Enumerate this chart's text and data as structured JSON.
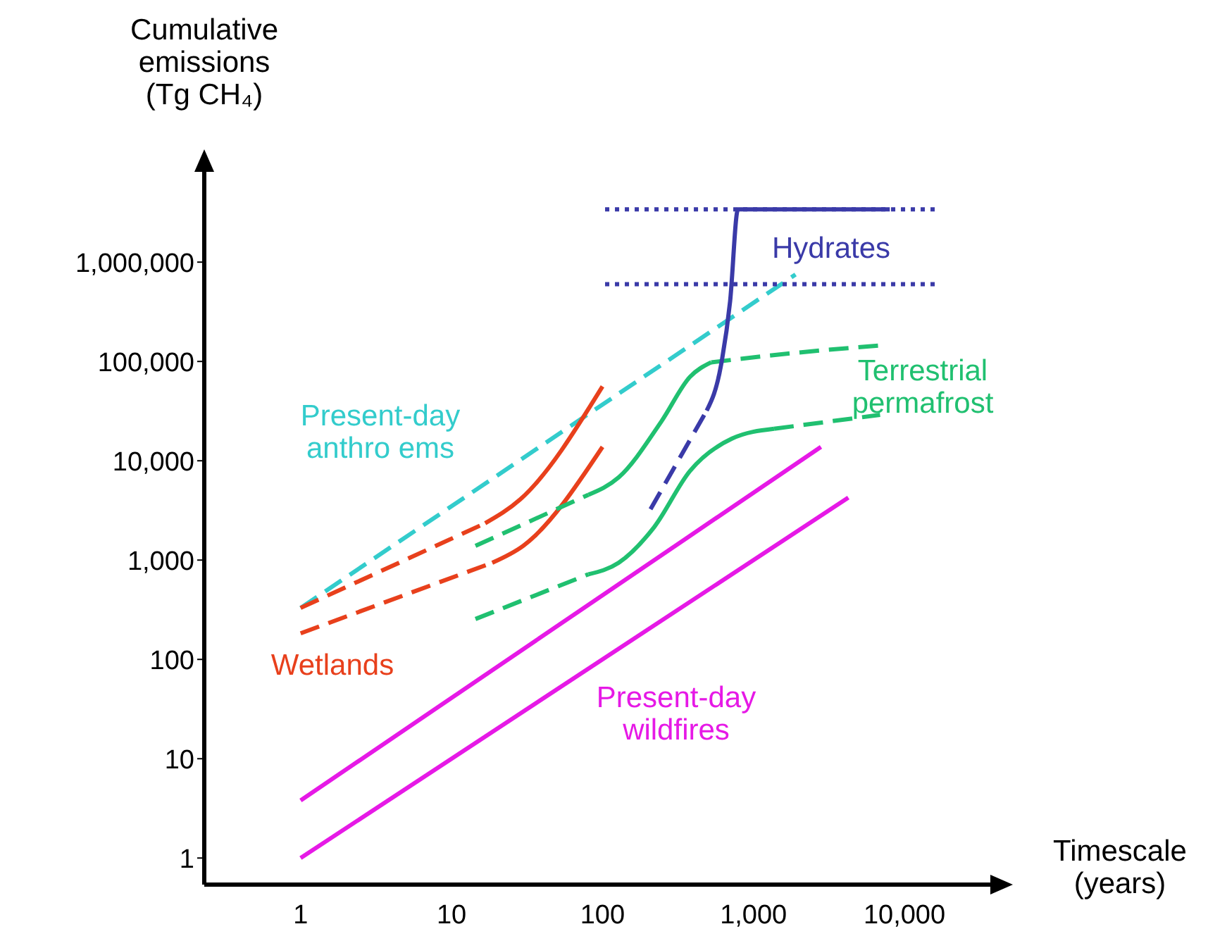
{
  "chart_data": {
    "type": "line",
    "log": "xy",
    "xlabel": "Timescale\n(years)",
    "ylabel": "Cumulative\nemissions\n(Tg CH₄)",
    "xlim": [
      0.23,
      48000
    ],
    "ylim": [
      0.54,
      12000000
    ],
    "xticks": [
      1,
      10,
      100,
      {
        "value": 1000,
        "label": "1,000"
      },
      {
        "value": 10000,
        "label": "10,000"
      }
    ],
    "yticks": [
      1,
      10,
      100,
      {
        "value": 1000,
        "label": "1,000"
      },
      {
        "value": 10000,
        "label": "10,000"
      },
      {
        "value": 100000,
        "label": "100,000"
      },
      {
        "value": 1000000,
        "label": "1,000,000"
      }
    ],
    "series": [
      {
        "color": "#e619e6",
        "line_style": "solid",
        "x": [
          1,
          4250
        ],
        "values": [
          1,
          4250
        ]
      },
      {
        "name": "Present-day\nwildfires",
        "color": "#e619e6",
        "line_style": "solid",
        "x": [
          1,
          2800
        ],
        "values": [
          3.8,
          13800
        ]
      },
      {
        "name": "Present-day\nanthro ems",
        "color": "#33cccc",
        "line_style": "dashed",
        "x": [
          1,
          1900
        ],
        "values": [
          330,
          750000
        ]
      },
      {
        "name": "Wetlands",
        "color": "#e8401c",
        "line_style": "dashed",
        "x": [
          1,
          16.7
        ],
        "values": [
          330,
          2350
        ]
      },
      {
        "color": "#e8401c",
        "line_style": "solid",
        "x": [
          16.7,
          28.6,
          100
        ],
        "values": [
          2350,
          4100,
          56000
        ]
      },
      {
        "color": "#e8401c",
        "line_style": "dashed",
        "x": [
          1,
          18.6
        ],
        "values": [
          183,
          940
        ]
      },
      {
        "color": "#e8401c",
        "line_style": "solid",
        "x": [
          18.6,
          30,
          100
        ],
        "values": [
          940,
          1400,
          13800
        ]
      },
      {
        "color": "#20c070",
        "line_style": "dashed",
        "x": [
          14.4,
          80.7
        ],
        "values": [
          1390,
          4550
        ]
      },
      {
        "color": "#20c070",
        "line_style": "solid",
        "x": [
          80.7,
          128,
          246,
          380,
          525
        ],
        "values": [
          4550,
          6800,
          25000,
          70000,
          98000
        ]
      },
      {
        "name": "Terrestrial\npermafrost",
        "color": "#20c070",
        "line_style": "dashed",
        "x": [
          525,
          1700,
          6900
        ],
        "values": [
          98000,
          120000,
          145000
        ]
      },
      {
        "color": "#20c070",
        "line_style": "dashed",
        "x": [
          14.4,
          80.7
        ],
        "values": [
          255,
          720
        ]
      },
      {
        "color": "#20c070",
        "line_style": "solid",
        "x": [
          80.7,
          128,
          220,
          380,
          720,
          1370
        ],
        "values": [
          720,
          940,
          2150,
          7900,
          16700,
          21000
        ]
      },
      {
        "color": "#20c070",
        "line_style": "dashed",
        "x": [
          1370,
          6900
        ],
        "values": [
          21000,
          29000
        ]
      },
      {
        "color": "#3a3aa8",
        "line_style": "dashed",
        "x": [
          208,
          490
        ],
        "values": [
          3250,
          32000
        ]
      },
      {
        "name": "Hydrates",
        "color": "#3a3aa8",
        "line_style": "solid",
        "x": [
          490,
          610,
          700,
          790,
          8000
        ],
        "values": [
          32000,
          92000,
          400000,
          3400000,
          3400000
        ]
      },
      {
        "color": "#3a3aa8",
        "line_style": "dotted",
        "x": [
          104,
          16400
        ],
        "values": [
          3400000,
          3400000
        ]
      },
      {
        "color": "#3a3aa8",
        "line_style": "dotted",
        "x": [
          104,
          16400
        ],
        "values": [
          600000,
          600000
        ]
      }
    ]
  }
}
